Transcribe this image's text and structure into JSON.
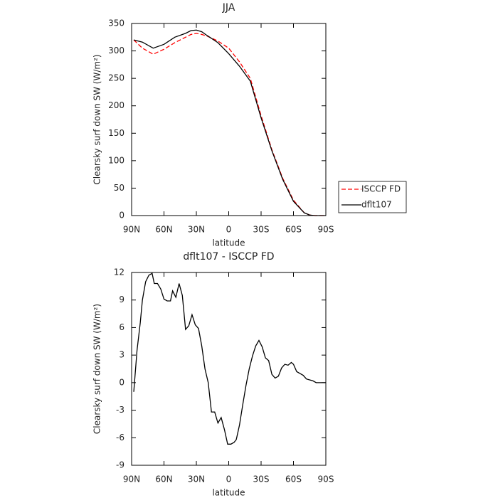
{
  "chart_data": [
    {
      "type": "line",
      "title": "JJA",
      "xlabel": "latitude",
      "ylabel": "Clearsky surf down SW (W/m²)",
      "x": [
        88,
        80,
        70,
        60,
        50,
        40,
        35,
        30,
        25,
        20,
        10,
        0,
        -10,
        -20,
        -30,
        -40,
        -50,
        -60,
        -70,
        -75,
        -80,
        -85,
        -90
      ],
      "series": [
        {
          "name": "ISCCP FD",
          "color": "#ff0000",
          "linestyle": "dashed",
          "values": [
            320,
            305,
            294,
            303,
            315,
            325,
            330,
            332,
            330,
            327,
            318,
            305,
            280,
            250,
            182,
            120,
            68,
            28,
            5,
            1,
            0,
            0,
            0
          ]
        },
        {
          "name": "dflt107",
          "color": "#000000",
          "linestyle": "solid",
          "values": [
            320,
            316,
            305,
            312,
            325,
            332,
            337,
            338,
            335,
            328,
            315,
            295,
            272,
            245,
            178,
            118,
            66,
            26,
            5,
            1,
            0,
            0,
            0
          ]
        }
      ],
      "xlim": [
        90,
        -90
      ],
      "xticks": [
        {
          "value": 90,
          "label": "90N"
        },
        {
          "value": 60,
          "label": "60N"
        },
        {
          "value": 30,
          "label": "30N"
        },
        0,
        {
          "value": -30,
          "label": "30S"
        },
        {
          "value": -60,
          "label": "60S"
        },
        {
          "value": -90,
          "label": "90S"
        }
      ],
      "ylim": [
        0,
        350
      ],
      "yticks": [
        0,
        50,
        100,
        150,
        200,
        250,
        300,
        350
      ],
      "legend": "outside-right"
    },
    {
      "type": "line",
      "title": "dflt107 - ISCCP FD",
      "xlabel": "latitude",
      "ylabel": "Clearsky surf down SW (W/m²)",
      "x": [
        88,
        85,
        82,
        80,
        77,
        74,
        71,
        69,
        66,
        63,
        60,
        57,
        54,
        52,
        49,
        46,
        43,
        40,
        37,
        34,
        31,
        28,
        25,
        22,
        19,
        16,
        13,
        10,
        7,
        4,
        1,
        -2,
        -5,
        -7,
        -10,
        -13,
        -16,
        -19,
        -22,
        -25,
        -28,
        -31,
        -34,
        -37,
        -40,
        -43,
        -46,
        -49,
        -52,
        -55,
        -58,
        -60,
        -63,
        -66,
        -69,
        -72,
        -75,
        -78,
        -81,
        -84,
        -87,
        -90
      ],
      "series": [
        {
          "color": "#000000",
          "linestyle": "solid",
          "values": [
            -1,
            3.5,
            6.5,
            9,
            11,
            11.7,
            11.9,
            10.8,
            10.8,
            10.2,
            9.1,
            8.9,
            8.9,
            10,
            9.3,
            10.8,
            9.5,
            5.8,
            6.2,
            7.4,
            6.3,
            5.9,
            4,
            1.5,
            0,
            -3.2,
            -3.2,
            -4.4,
            -3.8,
            -5.1,
            -6.7,
            -6.7,
            -6.5,
            -6.2,
            -4.6,
            -2.4,
            -0.3,
            1.5,
            2.9,
            4,
            4.6,
            3.9,
            2.7,
            2.4,
            0.9,
            0.5,
            0.7,
            1.6,
            2,
            1.9,
            2.2,
            2,
            1.2,
            1,
            0.8,
            0.4,
            0.3,
            0.2,
            0,
            0,
            0,
            0
          ]
        }
      ],
      "xlim": [
        90,
        -90
      ],
      "xticks": [
        {
          "value": 90,
          "label": "90N"
        },
        {
          "value": 60,
          "label": "60N"
        },
        {
          "value": 30,
          "label": "30N"
        },
        0,
        {
          "value": -30,
          "label": "30S"
        },
        {
          "value": -60,
          "label": "60S"
        },
        {
          "value": -90,
          "label": "90S"
        }
      ],
      "ylim": [
        -9,
        12
      ],
      "yticks": [
        -9,
        -6,
        -3,
        0,
        3,
        6,
        9,
        12
      ]
    }
  ]
}
